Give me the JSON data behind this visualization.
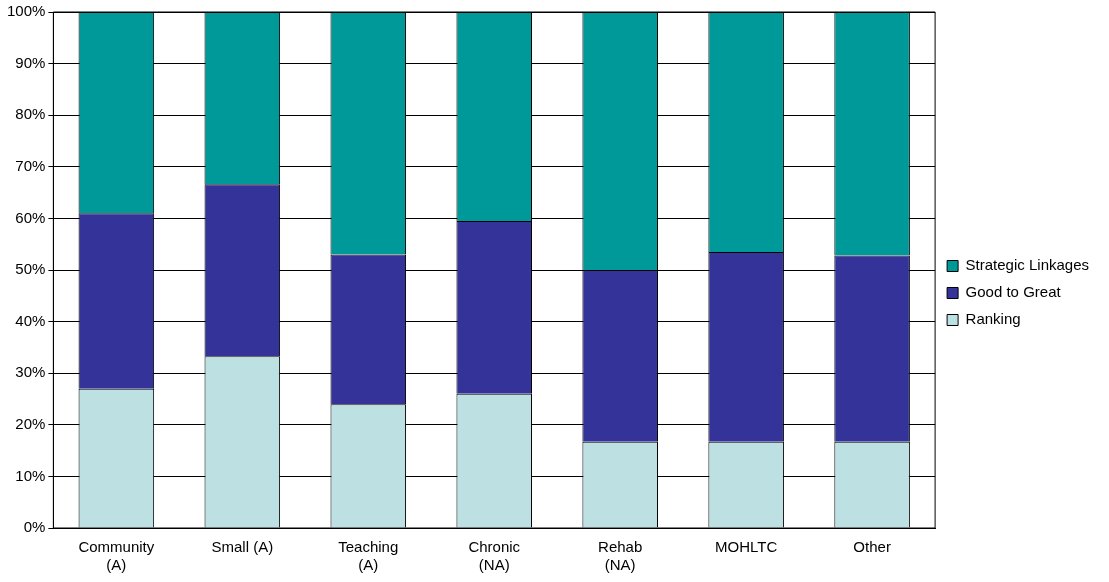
{
  "chart_data": {
    "type": "bar",
    "stacked": true,
    "categories": [
      "Community (A)",
      "Small (A)",
      "Teaching (A)",
      "Chronic (NA)",
      "Rehab (NA)",
      "MOHLTC",
      "Other"
    ],
    "series": [
      {
        "name": "Ranking",
        "color": "#bde0e3",
        "values": [
          27,
          33.3,
          24,
          26,
          16.7,
          16.7,
          16.7
        ]
      },
      {
        "name": "Good to Great",
        "color": "#333399",
        "values": [
          34,
          33.3,
          29,
          33.5,
          33.3,
          36.8,
          36.1
        ]
      },
      {
        "name": "Strategic Linkages",
        "color": "#009999",
        "values": [
          39,
          33.4,
          47,
          40.5,
          50,
          46.5,
          47.2
        ]
      }
    ],
    "ylim": [
      0,
      100
    ],
    "yticks": [
      {
        "value": 0,
        "label": "0%"
      },
      {
        "value": 10,
        "label": "10%"
      },
      {
        "value": 20,
        "label": "20%"
      },
      {
        "value": 30,
        "label": "30%"
      },
      {
        "value": 40,
        "label": "40%"
      },
      {
        "value": 50,
        "label": "50%"
      },
      {
        "value": 60,
        "label": "60%"
      },
      {
        "value": 70,
        "label": "70%"
      },
      {
        "value": 80,
        "label": "80%"
      },
      {
        "value": 90,
        "label": "90%"
      },
      {
        "value": 100,
        "label": "100%"
      }
    ],
    "grid": "y",
    "legend": "right"
  }
}
